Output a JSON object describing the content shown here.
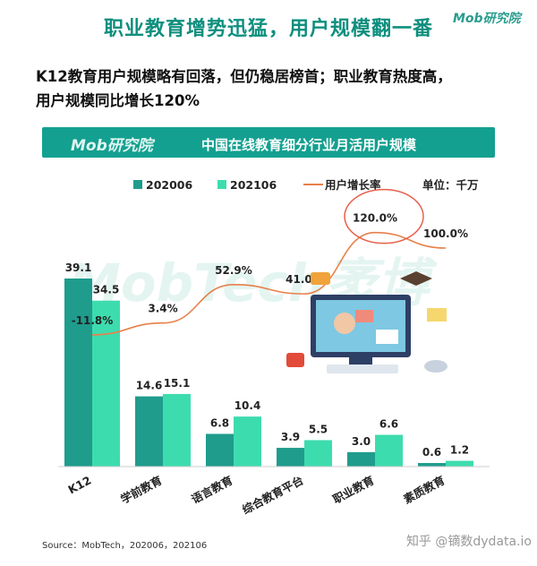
{
  "header": {
    "title": "职业教育增势迅猛，用户规模翻一番",
    "logo": "Mob研究院"
  },
  "summary": {
    "line1": "K12教育用户规模略有回落，但仍稳居榜首；职业教育热度高，",
    "line2": "用户规模同比增长120%"
  },
  "chart_banner": {
    "logo": "Mob研究院",
    "title": "中国在线教育细分行业月活用户规模"
  },
  "chart_data": {
    "type": "bar",
    "title": "中国在线教育细分行业月活用户规模",
    "unit_label": "单位：千万",
    "categories": [
      "K12",
      "学前教育",
      "语言教育",
      "综合教育平台",
      "职业教育",
      "素质教育"
    ],
    "series": [
      {
        "name": "202006",
        "values": [
          39.1,
          14.6,
          6.8,
          3.9,
          3.0,
          0.6
        ],
        "color": "#1f9c8c"
      },
      {
        "name": "202106",
        "values": [
          34.5,
          15.1,
          10.4,
          5.5,
          6.6,
          1.2
        ],
        "color": "#3ddcae"
      }
    ],
    "line_series": {
      "name": "用户增长率",
      "labels": [
        "-11.8%",
        "3.4%",
        "52.9%",
        "41.0%",
        "120.0%",
        "100.0%"
      ],
      "values": [
        -11.8,
        3.4,
        52.9,
        41.0,
        120.0,
        100.0
      ],
      "color": "#e8804a"
    },
    "legend_position": "top",
    "grid": false
  },
  "footer": {
    "source": "Source：MobTech，202006，202106",
    "watermark": "知乎 @镝数dydata.io"
  },
  "watermark_bg": "MobTech袤博"
}
